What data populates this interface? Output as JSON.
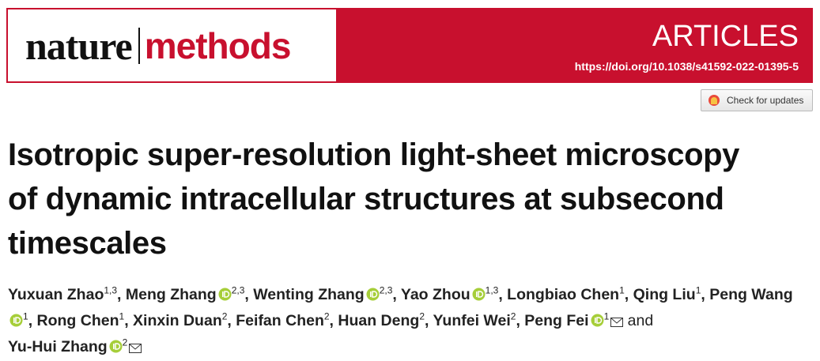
{
  "header": {
    "journal_left": "nature",
    "journal_right": "methods",
    "section": "ARTICLES",
    "doi": "https://doi.org/10.1038/s41592-022-01395-5"
  },
  "check_updates": "Check for updates",
  "title_lines": [
    "Isotropic super-resolution light-sheet microscopy",
    "of dynamic intracellular structures at subsecond",
    "timescales"
  ],
  "authors_separator": ",",
  "authors_conjunction": "and",
  "authors": [
    {
      "name": "Yuxuan Zhao",
      "affiliations": "1,3",
      "orcid": false,
      "corresponding": false
    },
    {
      "name": "Meng Zhang",
      "affiliations": "2,3",
      "orcid": true,
      "corresponding": false
    },
    {
      "name": "Wenting Zhang",
      "affiliations": "2,3",
      "orcid": true,
      "corresponding": false
    },
    {
      "name": "Yao Zhou",
      "affiliations": "1,3",
      "orcid": true,
      "corresponding": false
    },
    {
      "name": "Longbiao Chen",
      "affiliations": "1",
      "orcid": false,
      "corresponding": false
    },
    {
      "name": "Qing Liu",
      "affiliations": "1",
      "orcid": false,
      "corresponding": false
    },
    {
      "name": "Peng Wang",
      "affiliations": "1",
      "orcid": true,
      "corresponding": false
    },
    {
      "name": "Rong Chen",
      "affiliations": "1",
      "orcid": false,
      "corresponding": false
    },
    {
      "name": "Xinxin Duan",
      "affiliations": "2",
      "orcid": false,
      "corresponding": false
    },
    {
      "name": "Feifan Chen",
      "affiliations": "2",
      "orcid": false,
      "corresponding": false
    },
    {
      "name": "Huan Deng",
      "affiliations": "2",
      "orcid": false,
      "corresponding": false
    },
    {
      "name": "Yunfei Wei",
      "affiliations": "2",
      "orcid": false,
      "corresponding": false
    },
    {
      "name": "Peng Fei",
      "affiliations": "1",
      "orcid": true,
      "corresponding": true
    },
    {
      "name": "Yu-Hui Zhang",
      "affiliations": "2",
      "orcid": true,
      "corresponding": true
    }
  ]
}
